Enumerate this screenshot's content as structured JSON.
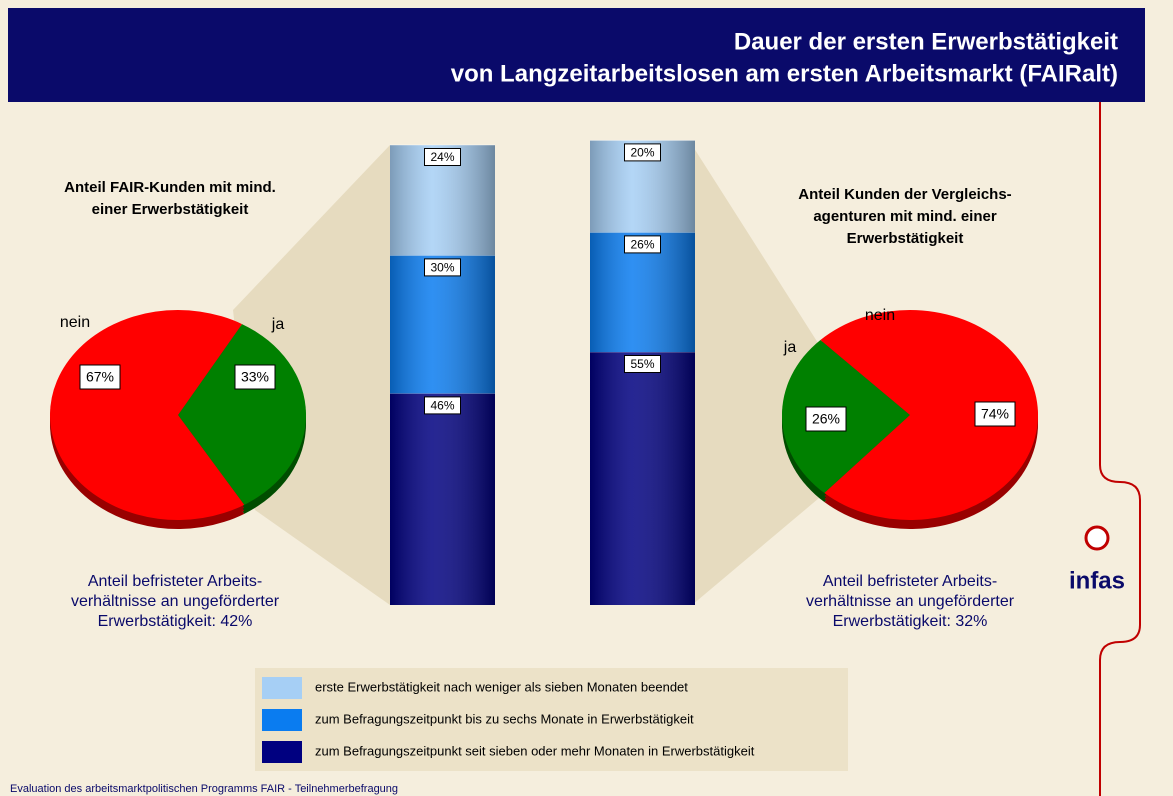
{
  "title": [
    "Dauer der ersten Erwerbstätigkeit",
    "von Langzeitarbeitslosen am ersten Arbeitsmarkt (FAIRalt)"
  ],
  "footer": "Evaluation des arbeitsmarktpolitischen Programms FAIR - Teilnehmerbefragung",
  "logo": "infas",
  "chart_data": [
    {
      "type": "pie",
      "title": [
        "Anteil FAIR-Kunden mit mind.",
        "einer Erwerbstätigkeit"
      ],
      "categories": [
        "nein",
        "ja"
      ],
      "values": [
        67,
        33
      ],
      "value_labels": [
        "67%",
        "33%"
      ],
      "colors": [
        "#ff0000",
        "#008000"
      ],
      "note": [
        "Anteil befristeter Arbeits-",
        "verhältnisse an ungeförderter",
        "Erwerbstätigkeit: 42%"
      ]
    },
    {
      "type": "bar",
      "stacked": true,
      "categories": [
        null,
        null
      ],
      "series": [
        {
          "name": "zum Befragungszeitpunkt seit sieben oder mehr Monaten in Erwerbstätigkeit",
          "color": "#000080",
          "values": [
            46,
            55
          ],
          "value_labels": [
            "46%",
            "55%"
          ]
        },
        {
          "name": "zum Befragungszeitpunkt bis zu sechs Monate in Erwerbstätigkeit",
          "color": "#0a7cf0",
          "values": [
            30,
            26
          ],
          "value_labels": [
            "30%",
            "26%"
          ]
        },
        {
          "name": "erste Erwerbstätigkeit nach weniger als sieben Monaten beendet",
          "color": "#a6cff5",
          "values": [
            24,
            20
          ],
          "value_labels": [
            "24%",
            "20%"
          ]
        }
      ]
    },
    {
      "type": "pie",
      "title": [
        "Anteil Kunden der Vergleichs-",
        "agenturen mit mind.  einer",
        "Erwerbstätigkeit"
      ],
      "categories": [
        "nein",
        "ja"
      ],
      "values": [
        74,
        26
      ],
      "value_labels": [
        "74%",
        "26%"
      ],
      "colors": [
        "#ff0000",
        "#008000"
      ],
      "note": [
        "Anteil befristeter Arbeits-",
        "verhältnisse an ungeförderter",
        "Erwerbstätigkeit: 32%"
      ]
    }
  ]
}
